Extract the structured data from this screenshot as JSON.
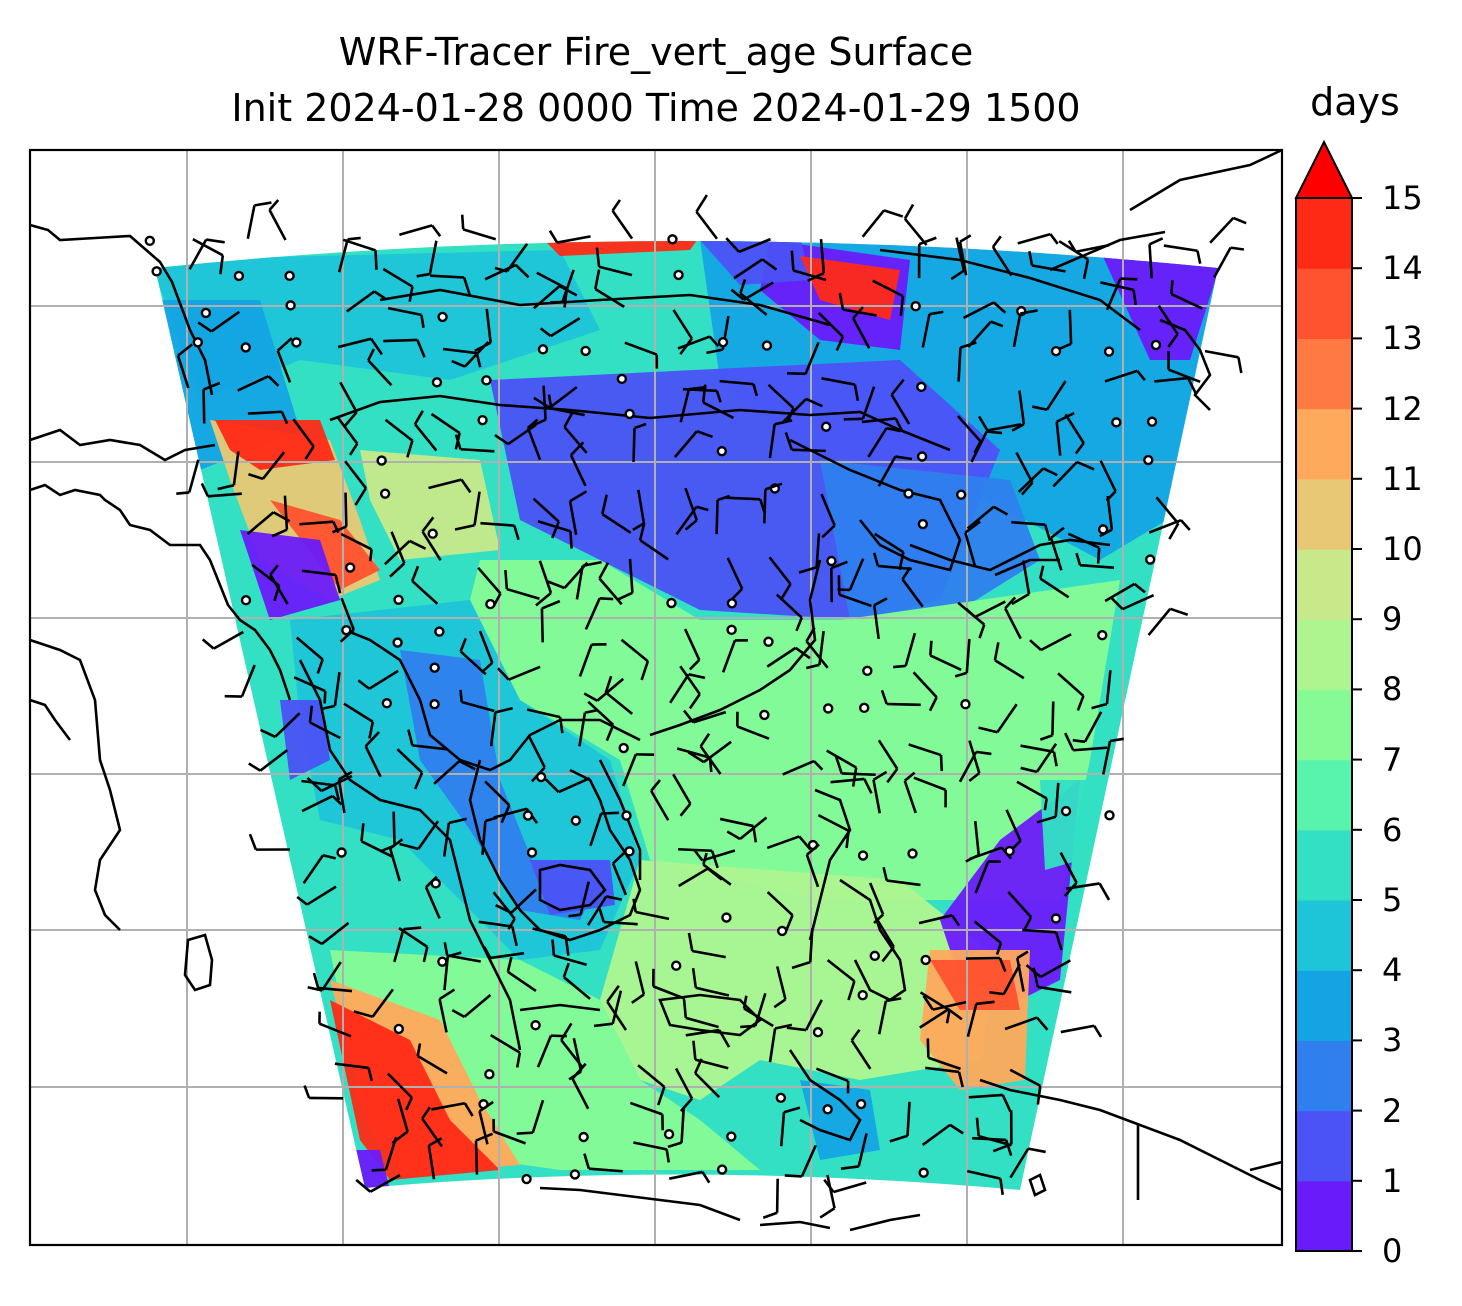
{
  "map": {
    "title_line1": "WRF-Tracer Fire_vert_age Surface",
    "title_line2": "Init 2024-01-28 0000 Time 2024-01-29 1500",
    "variable": "Fire_vert_age",
    "level": "Surface",
    "init_time": "2024-01-28 0000",
    "valid_time": "2024-01-29 1500",
    "grid": true,
    "wind_barbs": true,
    "calm_marker": "circle"
  },
  "colorbar": {
    "label": "days",
    "ticks": [
      "0",
      "1",
      "2",
      "3",
      "4",
      "5",
      "6",
      "7",
      "8",
      "9",
      "10",
      "11",
      "12",
      "13",
      "14",
      "15"
    ],
    "min": 0,
    "max": 15,
    "extend": "max",
    "colors": [
      "#6a1bfa",
      "#4b52f6",
      "#2f80ee",
      "#14a4e4",
      "#1ec4d8",
      "#33e0c4",
      "#58f4ad",
      "#86fb95",
      "#aef590",
      "#c8e889",
      "#e8c874",
      "#ffa95c",
      "#ff7a43",
      "#ff522e",
      "#ff2a16"
    ],
    "extend_color": "#ff0000"
  },
  "icons": {
    "wind-barb": "wind-barb-icon",
    "calm": "calm-circle-icon"
  }
}
